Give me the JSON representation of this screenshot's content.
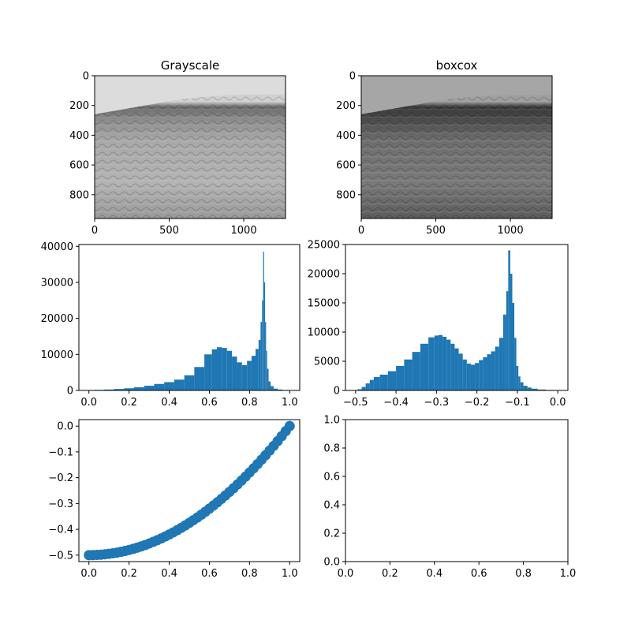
{
  "chart_data": [
    {
      "type": "image",
      "title": "Grayscale",
      "image_desc": "grayscale histology micrograph of skin tissue",
      "xlim": [
        0,
        1280
      ],
      "ylim": [
        960,
        0
      ],
      "xticks": [
        0,
        500,
        1000
      ],
      "yticks": [
        0,
        200,
        400,
        600,
        800
      ],
      "tone": "light"
    },
    {
      "type": "image",
      "title": "boxcox",
      "image_desc": "box-cox transformed grayscale histology micrograph of skin tissue",
      "xlim": [
        0,
        1280
      ],
      "ylim": [
        960,
        0
      ],
      "xticks": [
        0,
        500,
        1000
      ],
      "yticks": [
        0,
        200,
        400,
        600,
        800
      ],
      "tone": "dark"
    },
    {
      "type": "histogram",
      "title": "",
      "xlabel": "",
      "ylabel": "",
      "xlim": [
        -0.05,
        1.05
      ],
      "ylim": [
        0,
        40500
      ],
      "xticks": [
        0.0,
        0.2,
        0.4,
        0.6,
        0.8,
        1.0
      ],
      "yticks": [
        0,
        10000,
        20000,
        30000,
        40000
      ],
      "color": "#1f77b4",
      "x": [
        0.0,
        0.05,
        0.1,
        0.15,
        0.2,
        0.25,
        0.3,
        0.35,
        0.4,
        0.45,
        0.5,
        0.55,
        0.6,
        0.625,
        0.65,
        0.675,
        0.7,
        0.725,
        0.75,
        0.775,
        0.8,
        0.82,
        0.84,
        0.85,
        0.86,
        0.865,
        0.87,
        0.875,
        0.88,
        0.885,
        0.89,
        0.9,
        0.91,
        0.93,
        0.95,
        0.98,
        1.0
      ],
      "y": [
        50,
        150,
        250,
        400,
        600,
        900,
        1300,
        1800,
        2300,
        3000,
        4200,
        6500,
        10000,
        11400,
        12000,
        11800,
        11000,
        9400,
        7800,
        7000,
        8200,
        9600,
        11500,
        14000,
        19000,
        25000,
        38500,
        30000,
        19000,
        11000,
        6000,
        2500,
        1200,
        500,
        250,
        120,
        50
      ]
    },
    {
      "type": "histogram",
      "title": "",
      "xlabel": "",
      "ylabel": "",
      "xlim": [
        -0.525,
        0.025
      ],
      "ylim": [
        0,
        25000
      ],
      "xticks": [
        -0.5,
        -0.4,
        -0.3,
        -0.2,
        -0.1,
        0.0
      ],
      "yticks": [
        0,
        5000,
        10000,
        15000,
        20000,
        25000
      ],
      "color": "#1f77b4",
      "x": [
        -0.5,
        -0.49,
        -0.48,
        -0.47,
        -0.46,
        -0.45,
        -0.43,
        -0.41,
        -0.39,
        -0.37,
        -0.35,
        -0.33,
        -0.31,
        -0.3,
        -0.29,
        -0.28,
        -0.27,
        -0.26,
        -0.25,
        -0.24,
        -0.23,
        -0.22,
        -0.21,
        -0.2,
        -0.19,
        -0.18,
        -0.17,
        -0.16,
        -0.15,
        -0.14,
        -0.13,
        -0.125,
        -0.12,
        -0.115,
        -0.11,
        -0.105,
        -0.1,
        -0.095,
        -0.09,
        -0.08,
        -0.07,
        -0.06,
        -0.04,
        -0.02,
        0.0
      ],
      "y": [
        50,
        200,
        600,
        1200,
        1800,
        2300,
        2700,
        3300,
        4200,
        5300,
        6600,
        8000,
        9100,
        9400,
        9500,
        9200,
        8700,
        8000,
        7200,
        6300,
        5300,
        4600,
        4400,
        4700,
        5200,
        5700,
        6200,
        6700,
        7500,
        9000,
        13000,
        17000,
        24000,
        20000,
        15000,
        9000,
        4200,
        2400,
        1400,
        800,
        500,
        300,
        150,
        80,
        40
      ]
    },
    {
      "type": "scatter",
      "title": "",
      "xlabel": "",
      "ylabel": "",
      "xlim": [
        -0.05,
        1.05
      ],
      "ylim": [
        -0.525,
        0.025
      ],
      "xticks": [
        0.0,
        0.2,
        0.4,
        0.6,
        0.8,
        1.0
      ],
      "yticks": [
        -0.5,
        -0.4,
        -0.3,
        -0.2,
        -0.1,
        0.0
      ],
      "color": "#1f77b4",
      "x": [
        0.0,
        0.02,
        0.04,
        0.06,
        0.08,
        0.1,
        0.12,
        0.14,
        0.16,
        0.18,
        0.2,
        0.22,
        0.24,
        0.26,
        0.28,
        0.3,
        0.32,
        0.34,
        0.36,
        0.38,
        0.4,
        0.42,
        0.44,
        0.46,
        0.48,
        0.5,
        0.52,
        0.54,
        0.56,
        0.58,
        0.6,
        0.62,
        0.64,
        0.66,
        0.68,
        0.7,
        0.72,
        0.74,
        0.76,
        0.78,
        0.8,
        0.82,
        0.84,
        0.86,
        0.88,
        0.9,
        0.92,
        0.94,
        0.96,
        0.98,
        1.0
      ],
      "y": [
        -0.5,
        -0.4998,
        -0.4992,
        -0.4982,
        -0.4968,
        -0.495,
        -0.4928,
        -0.4902,
        -0.4872,
        -0.4838,
        -0.48,
        -0.4758,
        -0.4712,
        -0.4662,
        -0.4608,
        -0.455,
        -0.4488,
        -0.4422,
        -0.4352,
        -0.4278,
        -0.42,
        -0.4118,
        -0.4032,
        -0.3942,
        -0.3848,
        -0.375,
        -0.3648,
        -0.3542,
        -0.3432,
        -0.3318,
        -0.32,
        -0.3078,
        -0.2952,
        -0.2822,
        -0.2688,
        -0.255,
        -0.2408,
        -0.2262,
        -0.2112,
        -0.1958,
        -0.18,
        -0.1638,
        -0.1472,
        -0.1302,
        -0.1128,
        -0.095,
        -0.0768,
        -0.0582,
        -0.0392,
        -0.0198,
        0.0
      ]
    },
    {
      "type": "empty",
      "title": "",
      "xlim": [
        0,
        1
      ],
      "ylim": [
        0,
        1
      ],
      "xticks": [
        0.0,
        0.2,
        0.4,
        0.6,
        0.8,
        1.0
      ],
      "yticks": [
        0.0,
        0.2,
        0.4,
        0.6,
        0.8,
        1.0
      ]
    }
  ]
}
